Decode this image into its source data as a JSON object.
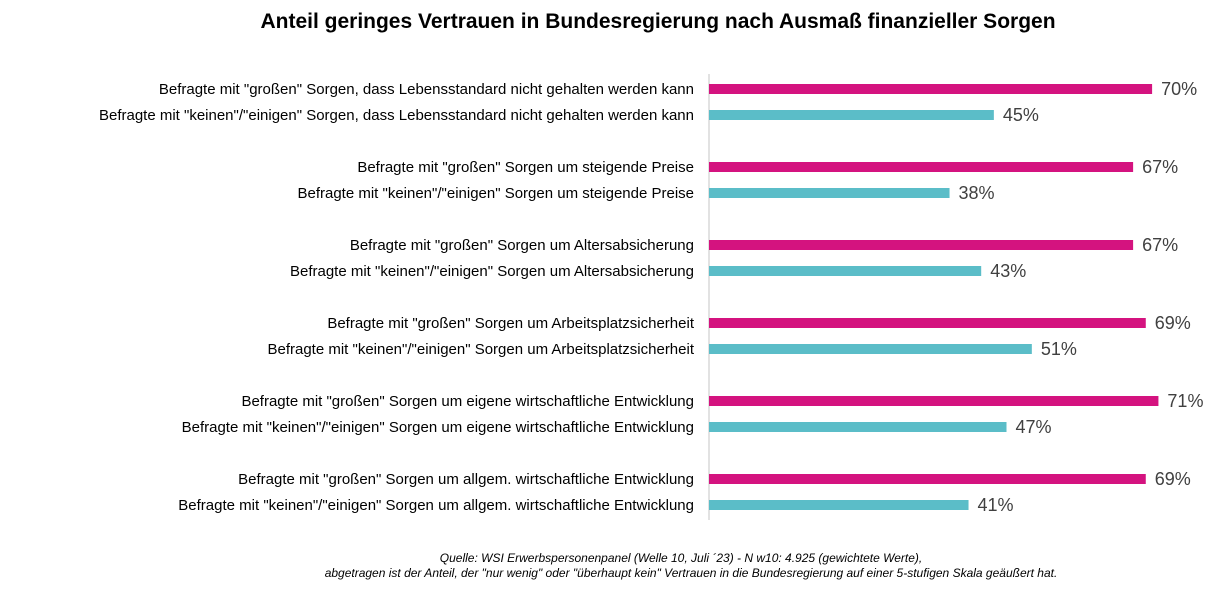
{
  "title": "Anteil geringes Vertrauen in Bundesregierung nach Ausmaß finanzieller Sorgen",
  "source": {
    "line1": "Quelle: WSI Erwerbspersonenpanel (Welle 10, Juli ´23) - N w10: 4.925 (gewichtete Werte),",
    "line2": "abgetragen ist der Anteil, der \"nur wenig\" oder \"überhaupt kein\" Vertrauen in die Bundesregierung auf einer 5-stufigen Skala geäußert hat."
  },
  "colors": {
    "grosse": "#d4137f",
    "keine": "#5bbdc8",
    "axis": "#d9d9d9"
  },
  "chart_data": {
    "type": "bar",
    "orientation": "horizontal",
    "xlim": [
      0,
      75
    ],
    "grid": false,
    "value_suffix": "%",
    "categories": [
      "Befragte mit \"großen\" Sorgen, dass Lebensstandard nicht gehalten werden kann",
      "Befragte mit \"keinen\"/\"einigen\" Sorgen, dass Lebensstandard nicht gehalten werden kann",
      "Befragte mit \"großen\" Sorgen um steigende Preise",
      "Befragte mit \"keinen\"/\"einigen\" Sorgen um steigende Preise",
      "Befragte mit \"großen\" Sorgen um Altersabsicherung",
      "Befragte mit \"keinen\"/\"einigen\" Sorgen um Altersabsicherung",
      "Befragte mit \"großen\" Sorgen um Arbeitsplatzsicherheit",
      "Befragte mit \"keinen\"/\"einigen\" Sorgen um Arbeitsplatzsicherheit",
      "Befragte mit \"großen\" Sorgen um eigene wirtschaftliche Entwicklung",
      "Befragte mit \"keinen\"/\"einigen\" Sorgen um eigene wirtschaftliche Entwicklung",
      "Befragte mit \"großen\" Sorgen um allgem. wirtschaftliche Entwicklung",
      "Befragte mit \"keinen\"/\"einigen\" Sorgen um allgem. wirtschaftliche Entwicklung"
    ],
    "values": [
      70,
      45,
      67,
      38,
      67,
      43,
      69,
      51,
      71,
      47,
      69,
      41
    ],
    "value_labels": [
      "70%",
      "45%",
      "67%",
      "38%",
      "67%",
      "43%",
      "69%",
      "51%",
      "71%",
      "47%",
      "69%",
      "41%"
    ],
    "bar_group": [
      "grosse",
      "keine",
      "grosse",
      "keine",
      "grosse",
      "keine",
      "grosse",
      "keine",
      "grosse",
      "keine",
      "grosse",
      "keine"
    ]
  }
}
